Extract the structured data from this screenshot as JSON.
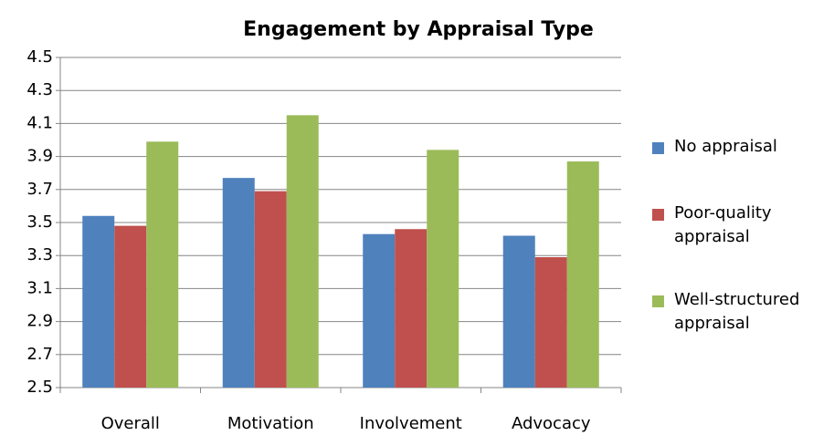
{
  "chart_data": {
    "type": "bar",
    "title": "Engagement by Appraisal Type",
    "categories": [
      "Overall",
      "Motivation",
      "Involvement",
      "Advocacy"
    ],
    "series": [
      {
        "name": "No appraisal",
        "color": "#4f81bd",
        "values": [
          3.54,
          3.77,
          3.43,
          3.42
        ]
      },
      {
        "name": "Poor-quality appraisal",
        "color": "#c0504d",
        "values": [
          3.48,
          3.69,
          3.46,
          3.29
        ]
      },
      {
        "name": "Well-structured appraisal",
        "color": "#9bbb59",
        "values": [
          3.99,
          4.15,
          3.94,
          3.87
        ]
      }
    ],
    "ylim": [
      2.5,
      4.5
    ],
    "yticks": [
      2.5,
      2.7,
      2.9,
      3.1,
      3.3,
      3.5,
      3.7,
      3.9,
      4.1,
      4.3,
      4.5
    ],
    "grid": true,
    "legend": "right"
  }
}
